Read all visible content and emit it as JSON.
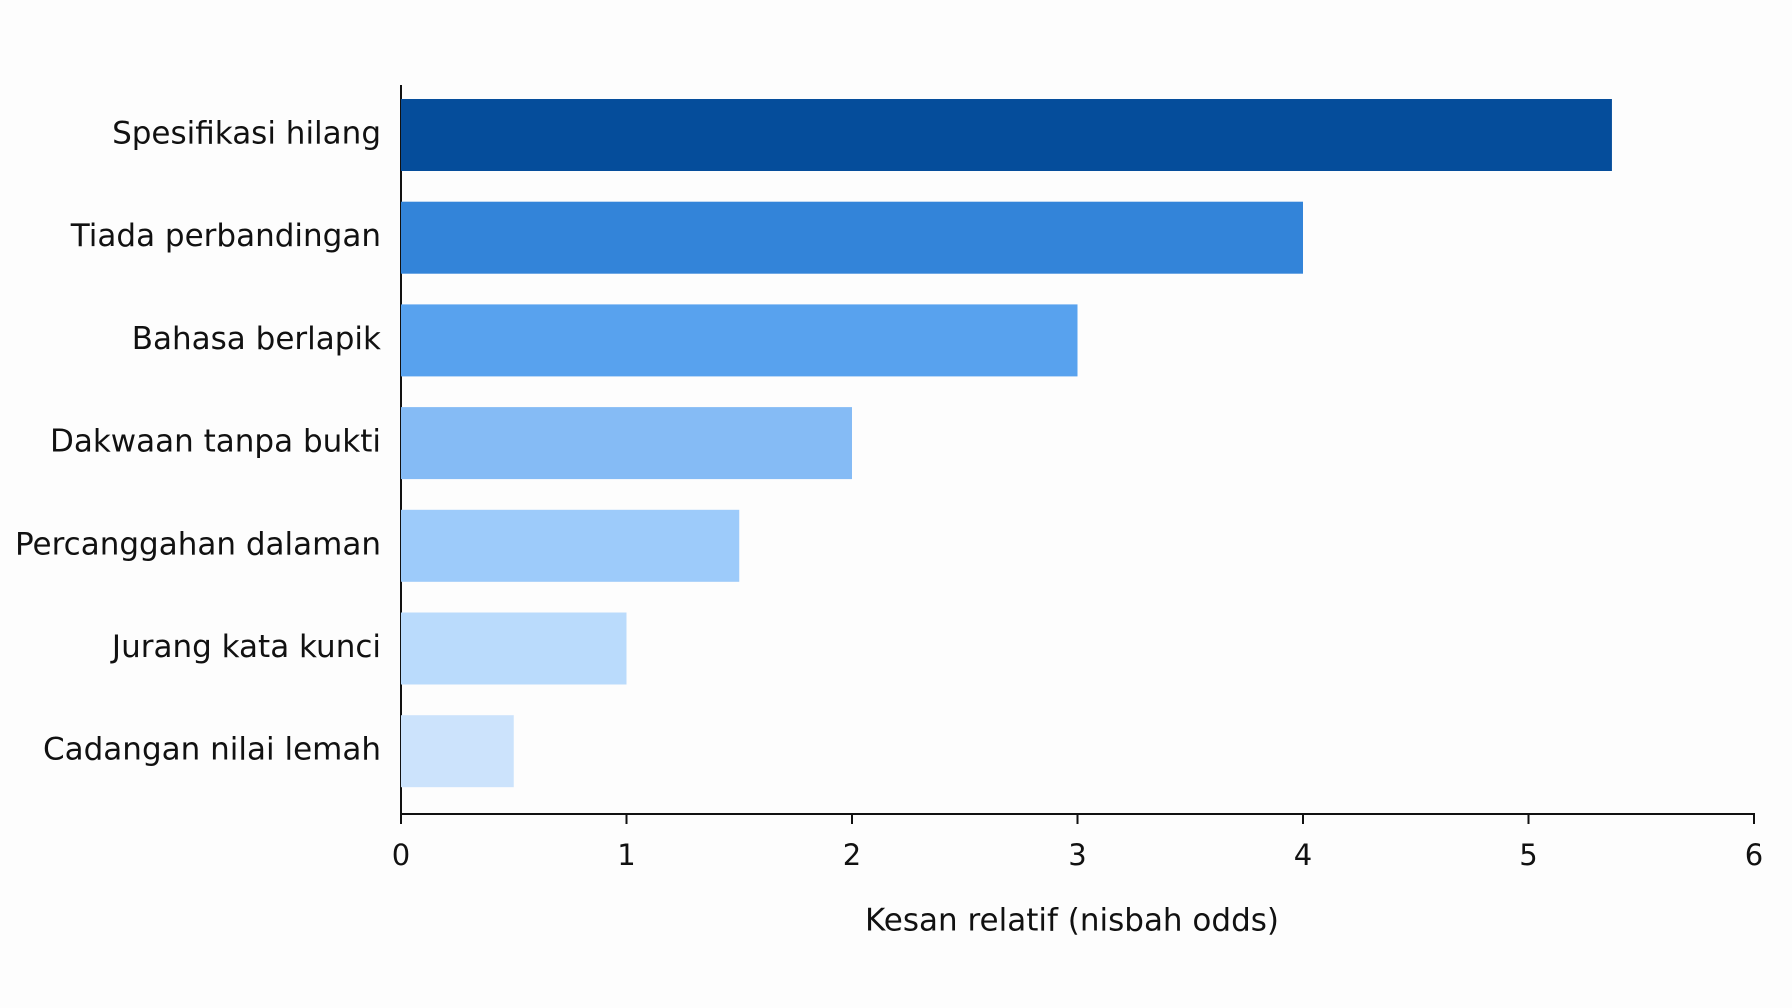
{
  "chart_data": {
    "type": "bar",
    "orientation": "horizontal",
    "categories": [
      "Spesifikasi hilang",
      "Tiada perbandingan",
      "Bahasa berlapik",
      "Dakwaan tanpa bukti",
      "Percanggahan dalaman",
      "Jurang kata kunci",
      "Cadangan nilai lemah"
    ],
    "values": [
      5.37,
      4.0,
      3.0,
      2.0,
      1.5,
      1.0,
      0.5
    ],
    "colors": [
      "#054d9b",
      "#3384d9",
      "#58a2ee",
      "#85bbf5",
      "#9dcbfa",
      "#badbfc",
      "#cce3fc"
    ],
    "xlabel": "Kesan relatif (nisbah odds)",
    "xlim": [
      0,
      6
    ],
    "xticks": [
      0,
      1,
      2,
      3,
      4,
      5,
      6
    ],
    "grid": false
  }
}
